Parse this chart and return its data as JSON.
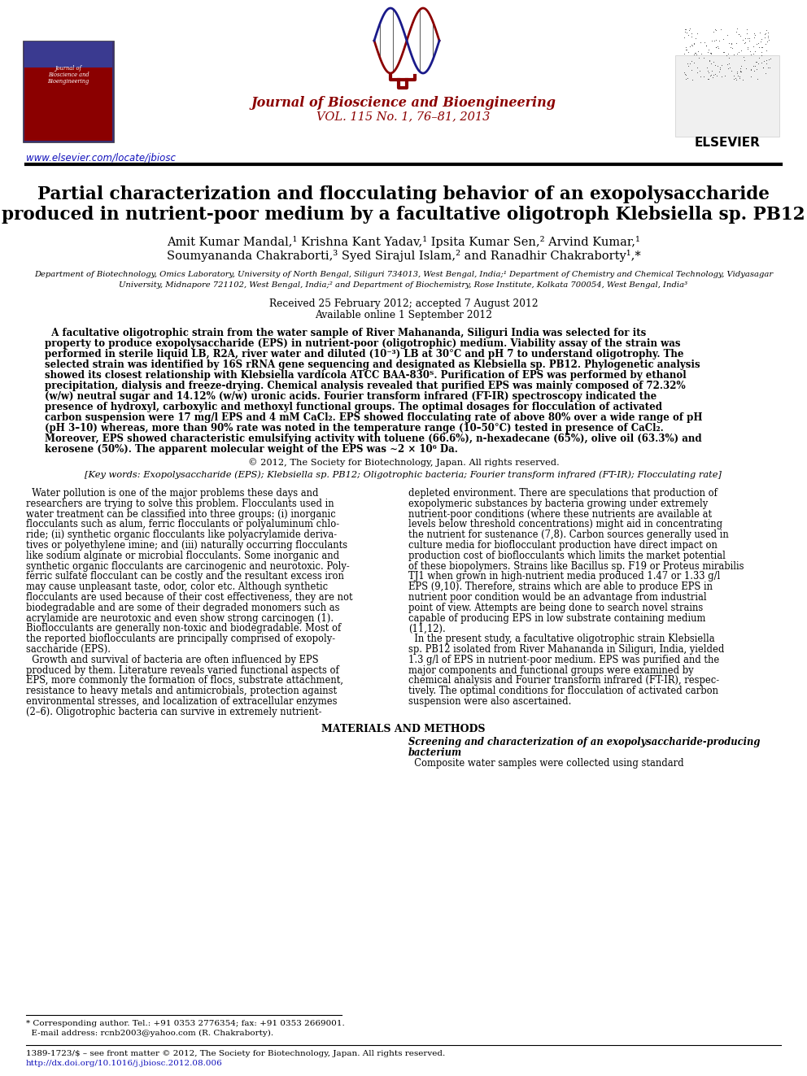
{
  "bg_color": "#ffffff",
  "journal_name": "Journal of Bioscience and Bioengineering",
  "journal_vol": "VOL. 115 No. 1, 76–81, 2013",
  "journal_name_color": "#8B0000",
  "url": "www.elsevier.com/locate/jbiosc",
  "title_line1": "Partial characterization and flocculating behavior of an exopolysaccharide",
  "title_line2": "produced in nutrient-poor medium by a facultative oligotroph ",
  "title_italic": "Klebsiella",
  "title_end": " sp. PB12",
  "authors_line1": "Amit Kumar Mandal,¹ Krishna Kant Yadav,¹ Ipsita Kumar Sen,² Arvind Kumar,¹",
  "authors_line2": "Soumyananda Chakraborti,³ Syed Sirajul Islam,² and Ranadhir Chakraborty¹,*",
  "affil_line1": "Department of Biotechnology, Omics Laboratory, University of North Bengal, Siliguri 734013, West Bengal, India;¹ Department of Chemistry and Chemical Technology, Vidyasagar",
  "affil_line2": "University, Midnapore 721102, West Bengal, India;² and Department of Biochemistry, Rose Institute, Kolkata 700054, West Bengal, India³",
  "received": "Received 25 February 2012; accepted 7 August 2012",
  "available": "Available online 1 September 2012",
  "abs_lines": [
    "  A facultative oligotrophic strain from the water sample of River Mahananda, Siliguri India was selected for its",
    "property to produce exopolysaccharide (EPS) in nutrient-poor (oligotrophic) medium. Viability assay of the strain was",
    "performed in sterile liquid LB, R2A, river water and diluted (10⁻³) LB at 30°C and pH 7 to understand oligotrophy. The",
    "selected strain was identified by 16S rRNA gene sequencing and designated as Klebsiella sp. PB12. Phylogenetic analysis",
    "showed its closest relationship with Klebsiella vardicola ATCC BAA-830ᵀ. Purification of EPS was performed by ethanol",
    "precipitation, dialysis and freeze-drying. Chemical analysis revealed that purified EPS was mainly composed of 72.32%",
    "(w/w) neutral sugar and 14.12% (w/w) uronic acids. Fourier transform infrared (FT-IR) spectroscopy indicated the",
    "presence of hydroxyl, carboxylic and methoxyl functional groups. The optimal dosages for flocculation of activated",
    "carbon suspension were 17 mg/l EPS and 4 mM CaCl₂. EPS showed flocculating rate of above 80% over a wide range of pH",
    "(pH 3–10) whereas, more than 90% rate was noted in the temperature range (10–50°C) tested in presence of CaCl₂.",
    "Moreover, EPS showed characteristic emulsifying activity with toluene (66.6%), n-hexadecane (65%), olive oil (63.3%) and",
    "kerosene (50%). The apparent molecular weight of the EPS was ~2 × 10⁶ Da."
  ],
  "copyright": "© 2012, The Society for Biotechnology, Japan. All rights reserved.",
  "keywords": "[Key words: Exopolysaccharide (EPS); Klebsiella sp. PB12; Oligotrophic bacteria; Fourier transform infrared (FT-IR); Flocculating rate]",
  "col1_lines": [
    "  Water pollution is one of the major problems these days and",
    "researchers are trying to solve this problem. Flocculants used in",
    "water treatment can be classified into three groups: (i) inorganic",
    "flocculants such as alum, ferric flocculants or polyaluminum chlo-",
    "ride; (ii) synthetic organic flocculants like polyacrylamide deriva-",
    "tives or polyethylene imine; and (iii) naturally occurring flocculants",
    "like sodium alginate or microbial flocculants. Some inorganic and",
    "synthetic organic flocculants are carcinogenic and neurotoxic. Poly-",
    "ferric sulfate flocculant can be costly and the resultant excess iron",
    "may cause unpleasant taste, odor, color etc. Although synthetic",
    "flocculants are used because of their cost effectiveness, they are not",
    "biodegradable and are some of their degraded monomers such as",
    "acrylamide are neurotoxic and even show strong carcinogen (1).",
    "Bioflocculants are generally non-toxic and biodegradable. Most of",
    "the reported bioflocculants are principally comprised of exopoly-",
    "saccharide (EPS).",
    "  Growth and survival of bacteria are often influenced by EPS",
    "produced by them. Literature reveals varied functional aspects of",
    "EPS, more commonly the formation of flocs, substrate attachment,",
    "resistance to heavy metals and antimicrobials, protection against",
    "environmental stresses, and localization of extracellular enzymes",
    "(2–6). Oligotrophic bacteria can survive in extremely nutrient-"
  ],
  "col2_lines": [
    "depleted environment. There are speculations that production of",
    "exopolymeric substances by bacteria growing under extremely",
    "nutrient-poor conditions (where these nutrients are available at",
    "levels below threshold concentrations) might aid in concentrating",
    "the nutrient for sustenance (7,8). Carbon sources generally used in",
    "culture media for bioflocculant production have direct impact on",
    "production cost of bioflocculants which limits the market potential",
    "of these biopolymers. Strains like Bacillus sp. F19 or Proteus mirabilis",
    "TJ1 when grown in high-nutrient media produced 1.47 or 1.33 g/l",
    "EPS (9,10). Therefore, strains which are able to produce EPS in",
    "nutrient poor condition would be an advantage from industrial",
    "point of view. Attempts are being done to search novel strains",
    "capable of producing EPS in low substrate containing medium",
    "(11,12).",
    "  In the present study, a facultative oligotrophic strain Klebsiella",
    "sp. PB12 isolated from River Mahananda in Siliguri, India, yielded",
    "1.3 g/l of EPS in nutrient-poor medium. EPS was purified and the",
    "major components and functional groups were examined by",
    "chemical analysis and Fourier transform infrared (FT-IR), respec-",
    "tively. The optimal conditions for flocculation of activated carbon",
    "suspension were also ascertained."
  ],
  "materials_header": "MATERIALS AND METHODS",
  "materials_subheader": "Screening and characterization of an exopolysaccharide-producing",
  "materials_subheader2": "bacterium",
  "materials_text": "  Composite water samples were collected using standard",
  "footer_note1": "* Corresponding author. Tel.: +91 0353 2776354; fax: +91 0353 2669001.",
  "footer_note2": "  E-mail address: rcnb2003@yahoo.com (R. Chakraborty).",
  "footer_issn": "1389-1723/$ – see front matter © 2012, The Society for Biotechnology, Japan. All rights reserved.",
  "footer_doi": "http://dx.doi.org/10.1016/j.jbiosc.2012.08.006"
}
